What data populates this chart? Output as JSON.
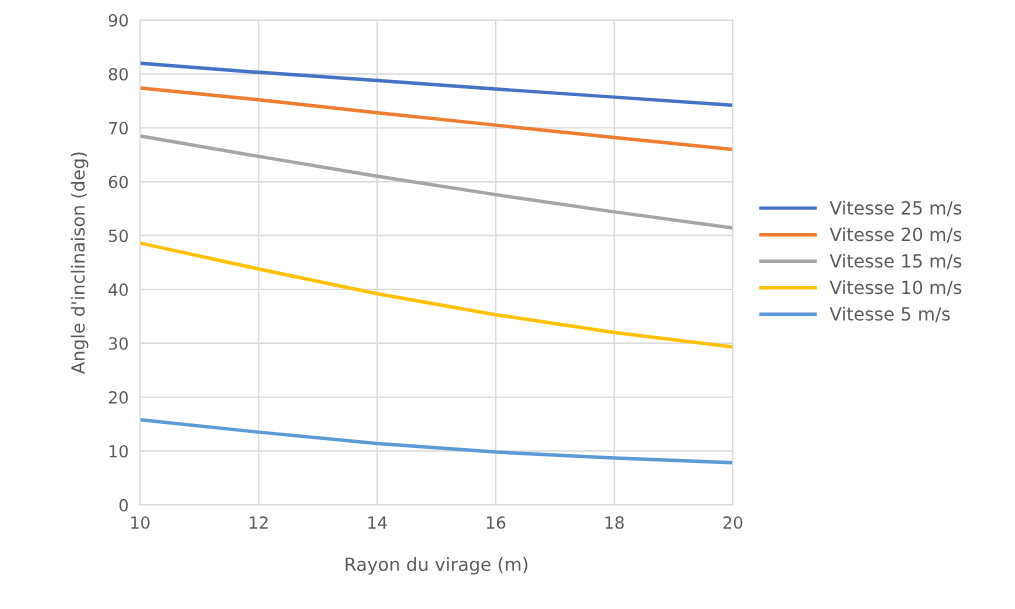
{
  "chart_data": {
    "type": "line",
    "xlabel": "Rayon du virage (m)",
    "ylabel": "Angle d'inclinaison (deg)",
    "x": [
      10,
      12,
      14,
      16,
      18,
      20
    ],
    "series": [
      {
        "name": "Vitesse 25 m/s",
        "color": "#4472c4",
        "values": [
          82.0,
          80.3,
          78.8,
          77.2,
          75.7,
          74.2
        ]
      },
      {
        "name": "Vitesse 20 m/s",
        "color": "#ed7d31",
        "values": [
          77.4,
          75.2,
          72.8,
          70.5,
          68.2,
          66.0
        ]
      },
      {
        "name": "Vitesse 15 m/s",
        "color": "#a5a5a5",
        "values": [
          68.5,
          64.7,
          61.0,
          57.6,
          54.4,
          51.4
        ]
      },
      {
        "name": "Vitesse 10 m/s",
        "color": "#ffc000",
        "values": [
          48.6,
          43.8,
          39.2,
          35.3,
          32.0,
          29.3
        ]
      },
      {
        "name": "Vitesse 5 m/s",
        "color": "#5b9bd5",
        "values": [
          15.8,
          13.5,
          11.4,
          9.8,
          8.7,
          7.8
        ]
      }
    ],
    "xlim": [
      10,
      20
    ],
    "xticks": [
      10,
      12,
      14,
      16,
      18,
      20
    ],
    "ylim": [
      0,
      90
    ],
    "yticks": [
      0,
      10,
      20,
      30,
      40,
      50,
      60,
      70,
      80,
      90
    ],
    "grid": true,
    "legend": "right",
    "marker": "none",
    "line_style": "solid"
  }
}
